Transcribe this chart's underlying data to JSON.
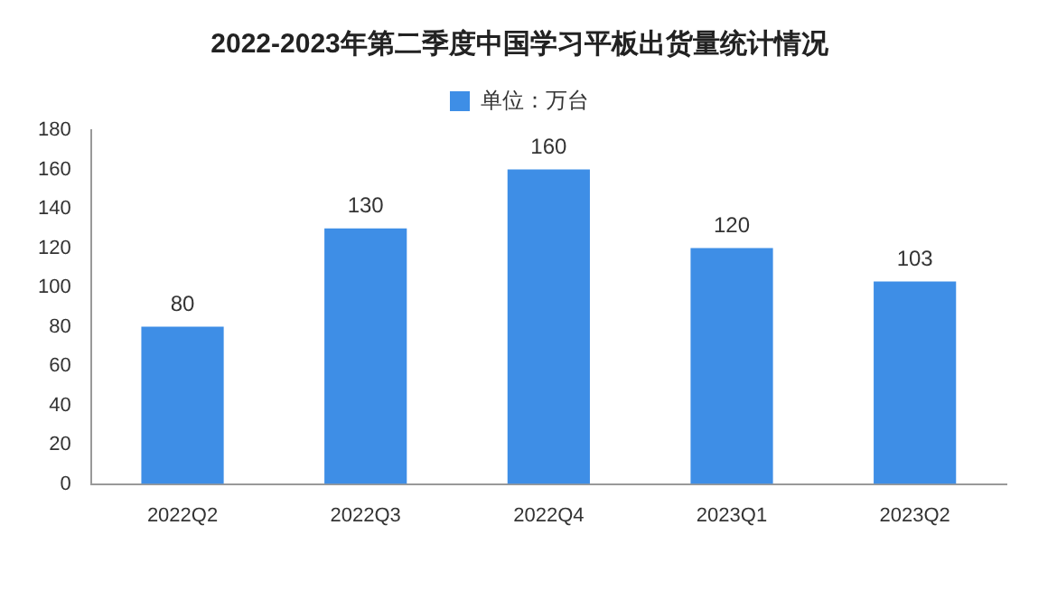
{
  "chart_data": {
    "type": "bar",
    "title": "2022-2023年第二季度中国学习平板出货量统计情况",
    "categories": [
      "2022Q2",
      "2022Q3",
      "2022Q4",
      "2023Q1",
      "2023Q2"
    ],
    "series": [
      {
        "name": "单位：万台",
        "color": "#3e8ee6",
        "values": [
          80,
          130,
          160,
          120,
          103
        ]
      }
    ],
    "ylim": [
      0,
      180
    ],
    "yticks": [
      0,
      20,
      40,
      60,
      80,
      100,
      120,
      140,
      160,
      180
    ],
    "grid": false,
    "legend": "top",
    "data_labels": true
  }
}
